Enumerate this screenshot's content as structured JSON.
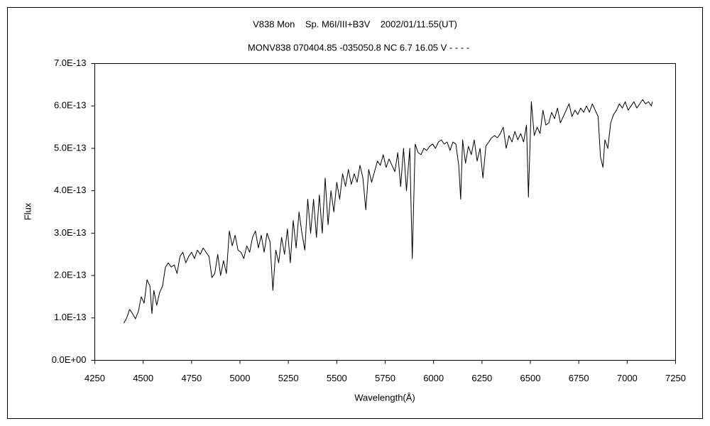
{
  "chart_data": {
    "type": "line",
    "title": "V838 Mon    Sp. M6I/III+B3V    2002/01/11.55(UT)",
    "subtitle": "MONV838 070404.85 -035050.8 NC 6.7 16.05 V - - - -",
    "xlabel": "Wavelength(Å)",
    "ylabel": "Flux",
    "xlim": [
      4250,
      7250
    ],
    "xticks": [
      4250,
      4500,
      4750,
      5000,
      5250,
      5500,
      5750,
      6000,
      6250,
      6500,
      6750,
      7000,
      7250
    ],
    "ylim": [
      0,
      7e-13
    ],
    "yticks": [
      {
        "value": 0,
        "label": "0.0E+00"
      },
      {
        "value": 1e-13,
        "label": "1.0E-13"
      },
      {
        "value": 2e-13,
        "label": "2.0E-13"
      },
      {
        "value": 3e-13,
        "label": "3.0E-13"
      },
      {
        "value": 4e-13,
        "label": "4.0E-13"
      },
      {
        "value": 5e-13,
        "label": "5.0E-13"
      },
      {
        "value": 6e-13,
        "label": "6.0E-13"
      },
      {
        "value": 7e-13,
        "label": "7.0E-13"
      }
    ],
    "grid": false,
    "color": "#000000",
    "x": [
      4400,
      4415,
      4430,
      4445,
      4460,
      4475,
      4490,
      4505,
      4520,
      4535,
      4545,
      4555,
      4570,
      4585,
      4600,
      4615,
      4630,
      4645,
      4660,
      4675,
      4690,
      4705,
      4720,
      4735,
      4750,
      4765,
      4780,
      4795,
      4810,
      4825,
      4840,
      4855,
      4870,
      4885,
      4900,
      4915,
      4930,
      4945,
      4960,
      4975,
      4990,
      5005,
      5020,
      5035,
      5050,
      5065,
      5080,
      5095,
      5110,
      5125,
      5140,
      5155,
      5170,
      5185,
      5200,
      5215,
      5230,
      5245,
      5260,
      5275,
      5290,
      5305,
      5320,
      5335,
      5350,
      5365,
      5380,
      5395,
      5410,
      5425,
      5440,
      5455,
      5470,
      5485,
      5500,
      5515,
      5530,
      5545,
      5560,
      5575,
      5590,
      5605,
      5620,
      5635,
      5650,
      5665,
      5680,
      5695,
      5710,
      5725,
      5740,
      5755,
      5770,
      5785,
      5800,
      5815,
      5830,
      5845,
      5860,
      5877,
      5890,
      5905,
      5920,
      5935,
      5950,
      5965,
      5980,
      5995,
      6010,
      6025,
      6040,
      6055,
      6070,
      6085,
      6100,
      6115,
      6130,
      6140,
      6150,
      6165,
      6180,
      6195,
      6210,
      6225,
      6240,
      6255,
      6270,
      6285,
      6300,
      6315,
      6330,
      6345,
      6360,
      6375,
      6390,
      6405,
      6420,
      6435,
      6450,
      6465,
      6480,
      6490,
      6505,
      6520,
      6535,
      6550,
      6565,
      6580,
      6595,
      6610,
      6625,
      6640,
      6655,
      6670,
      6685,
      6700,
      6715,
      6730,
      6745,
      6760,
      6775,
      6790,
      6805,
      6820,
      6835,
      6850,
      6862,
      6875,
      6885,
      6900,
      6915,
      6930,
      6945,
      6960,
      6975,
      6990,
      7005,
      7020,
      7035,
      7050,
      7065,
      7080,
      7095,
      7110,
      7125,
      7130
    ],
    "values": [
      8.8e-14,
      1e-13,
      1.2e-13,
      1.1e-13,
      9.8e-14,
      1.15e-13,
      1.5e-13,
      1.35e-13,
      1.9e-13,
      1.75e-13,
      1.1e-13,
      1.65e-13,
      1.3e-13,
      1.6e-13,
      1.75e-13,
      2.2e-13,
      2.3e-13,
      2.2e-13,
      2.25e-13,
      2.05e-13,
      2.45e-13,
      2.55e-13,
      2.3e-13,
      2.45e-13,
      2.55e-13,
      2.4e-13,
      2.6e-13,
      2.5e-13,
      2.65e-13,
      2.55e-13,
      2.45e-13,
      1.95e-13,
      2.05e-13,
      2.5e-13,
      2e-13,
      2.35e-13,
      2.05e-13,
      3.05e-13,
      2.7e-13,
      2.95e-13,
      2.6e-13,
      2.55e-13,
      2.4e-13,
      2.7e-13,
      2.55e-13,
      2.9e-13,
      3.05e-13,
      2.65e-13,
      2.95e-13,
      2.55e-13,
      3e-13,
      2.8e-13,
      1.65e-13,
      2.6e-13,
      2.3e-13,
      2.9e-13,
      2.5e-13,
      3.1e-13,
      2.3e-13,
      3.3e-13,
      2.65e-13,
      3.5e-13,
      3e-13,
      2.6e-13,
      3.8e-13,
      3e-13,
      3.8e-13,
      2.9e-13,
      3.9e-13,
      3e-13,
      4.3e-13,
      3.2e-13,
      4e-13,
      3.5e-13,
      4.2e-13,
      3.8e-13,
      4.4e-13,
      4.1e-13,
      4.5e-13,
      4.15e-13,
      4.4e-13,
      4.2e-13,
      4.6e-13,
      4.3e-13,
      3.55e-13,
      4.5e-13,
      4.2e-13,
      4.45e-13,
      4.7e-13,
      4.6e-13,
      4.85e-13,
      4.55e-13,
      4.75e-13,
      4.6e-13,
      4.45e-13,
      4.9e-13,
      4.1e-13,
      5e-13,
      4e-13,
      5e-13,
      2.4e-13,
      5.1e-13,
      4.9e-13,
      4.85e-13,
      5e-13,
      4.95e-13,
      5.05e-13,
      5.1e-13,
      5e-13,
      5.15e-13,
      5.2e-13,
      5.1e-13,
      5.15e-13,
      4.95e-13,
      5.15e-13,
      5.1e-13,
      4.6e-13,
      3.8e-13,
      5.2e-13,
      4.65e-13,
      5.05e-13,
      4.85e-13,
      5.2e-13,
      4.7e-13,
      5e-13,
      4.3e-13,
      5.05e-13,
      5.15e-13,
      5.25e-13,
      5.3e-13,
      5.25e-13,
      5.35e-13,
      5.5e-13,
      5e-13,
      5.3e-13,
      5.15e-13,
      5.4e-13,
      5.2e-13,
      5.35e-13,
      5.15e-13,
      5.55e-13,
      3.85e-13,
      6.1e-13,
      5.3e-13,
      5.5e-13,
      5.35e-13,
      5.9e-13,
      5.55e-13,
      5.6e-13,
      5.85e-13,
      5.7e-13,
      5.95e-13,
      5.6e-13,
      5.75e-13,
      5.9e-13,
      6.05e-13,
      5.75e-13,
      5.9e-13,
      5.8e-13,
      5.95e-13,
      5.85e-13,
      6e-13,
      5.85e-13,
      6.05e-13,
      5.9e-13,
      5.75e-13,
      4.8e-13,
      4.55e-13,
      5.2e-13,
      5e-13,
      5.6e-13,
      5.8e-13,
      5.9e-13,
      6.05e-13,
      5.95e-13,
      6.1e-13,
      5.9e-13,
      6e-13,
      6.1e-13,
      5.95e-13,
      6.05e-13,
      6.15e-13,
      6.05e-13,
      6.1e-13,
      6e-13,
      6.1e-13
    ]
  }
}
